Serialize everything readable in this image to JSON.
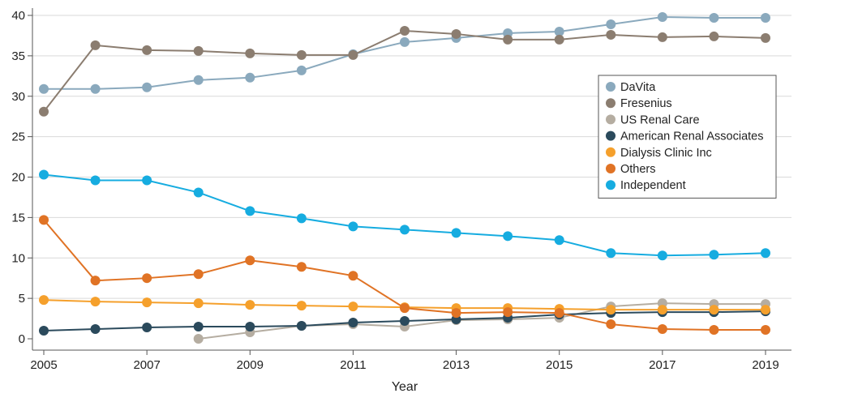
{
  "chart_data": {
    "type": "line",
    "xlabel": "Year",
    "ylabel": "",
    "x": [
      2005,
      2006,
      2007,
      2008,
      2009,
      2010,
      2011,
      2012,
      2013,
      2014,
      2015,
      2016,
      2017,
      2018,
      2019
    ],
    "xticks": [
      2005,
      2007,
      2009,
      2011,
      2013,
      2015,
      2017,
      2019
    ],
    "yticks": [
      0,
      5,
      10,
      15,
      20,
      25,
      30,
      35,
      40
    ],
    "xlim": [
      2005,
      2019
    ],
    "ylim": [
      0,
      40
    ],
    "grid": "horizontal",
    "legend_position": "right",
    "series": [
      {
        "name": "DaVita",
        "color": "#8aa9bd",
        "values": [
          30.9,
          30.9,
          31.1,
          32.0,
          32.3,
          33.2,
          35.2,
          36.7,
          37.2,
          37.8,
          38.0,
          38.9,
          39.8,
          39.7,
          39.7
        ]
      },
      {
        "name": "Fresenius",
        "color": "#8b7d70",
        "values": [
          28.1,
          36.3,
          35.7,
          35.6,
          35.3,
          35.1,
          35.1,
          38.1,
          37.7,
          37.0,
          37.0,
          37.6,
          37.3,
          37.4,
          37.2
        ]
      },
      {
        "name": "US Renal Care",
        "color": "#b5ada1",
        "values": [
          null,
          null,
          null,
          0.0,
          0.8,
          1.6,
          1.8,
          1.5,
          2.3,
          2.4,
          2.6,
          4.0,
          4.4,
          4.3,
          4.3
        ]
      },
      {
        "name": "American Renal Associates",
        "color": "#2b4a5c",
        "values": [
          1.0,
          1.2,
          1.4,
          1.5,
          1.5,
          1.6,
          2.0,
          2.2,
          2.4,
          2.6,
          3.0,
          3.2,
          3.3,
          3.3,
          3.4
        ]
      },
      {
        "name": "Dialysis Clinic Inc",
        "color": "#f5a02c",
        "values": [
          4.8,
          4.6,
          4.5,
          4.4,
          4.2,
          4.1,
          4.0,
          3.9,
          3.8,
          3.8,
          3.7,
          3.6,
          3.6,
          3.6,
          3.6
        ]
      },
      {
        "name": "Others",
        "color": "#e07325",
        "values": [
          14.7,
          7.2,
          7.5,
          8.0,
          9.7,
          8.9,
          7.8,
          3.8,
          3.2,
          3.3,
          3.2,
          1.8,
          1.2,
          1.1,
          1.1
        ]
      },
      {
        "name": "Independent",
        "color": "#16ace0",
        "values": [
          20.3,
          19.6,
          19.6,
          18.1,
          15.8,
          14.9,
          13.9,
          13.5,
          13.1,
          12.7,
          12.2,
          10.6,
          10.3,
          10.4,
          10.6
        ]
      }
    ]
  }
}
